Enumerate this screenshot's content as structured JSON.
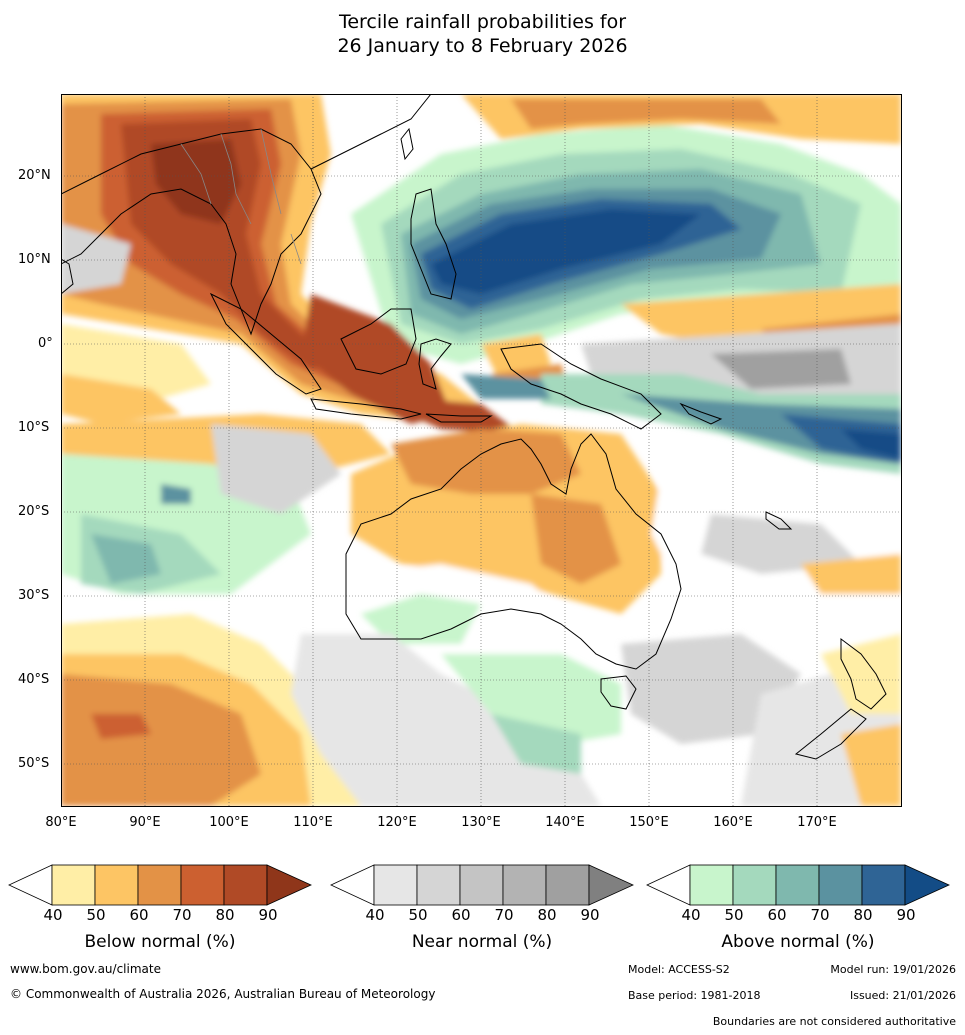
{
  "title": {
    "line1": "Tercile rainfall probabilities for",
    "line2": "26 January to 8 February 2026"
  },
  "axes": {
    "lat_labels": [
      "20°N",
      "10°N",
      "0°",
      "10°S",
      "20°S",
      "30°S",
      "40°S",
      "50°S"
    ],
    "lon_labels": [
      "80°E",
      "90°E",
      "100°E",
      "110°E",
      "120°E",
      "130°E",
      "140°E",
      "150°E",
      "160°E",
      "170°E"
    ]
  },
  "legends": [
    {
      "title": "Below normal (%)",
      "ticks": [
        "40",
        "50",
        "60",
        "70",
        "80",
        "90"
      ],
      "colors": [
        "#ffeea6",
        "#fdc564",
        "#e39246",
        "#cc6030",
        "#b04a26",
        "#8f361a"
      ]
    },
    {
      "title": "Near normal (%)",
      "ticks": [
        "40",
        "50",
        "60",
        "70",
        "80",
        "90"
      ],
      "colors": [
        "#e6e6e6",
        "#d5d5d5",
        "#c4c4c4",
        "#b3b3b3",
        "#a0a0a0",
        "#808080"
      ]
    },
    {
      "title": "Above normal (%)",
      "ticks": [
        "40",
        "50",
        "60",
        "70",
        "80",
        "90"
      ],
      "colors": [
        "#c8f5cc",
        "#a4d9bd",
        "#7fb8ae",
        "#5b92a0",
        "#2f6495",
        "#134c86"
      ]
    }
  ],
  "footer": {
    "website": "www.bom.gov.au/climate",
    "copyright": "© Commonwealth of Australia 2026, Australian Bureau of Meteorology",
    "model": "Model: ACCESS-S2",
    "model_run": "Model run: 19/01/2026",
    "base_period": "Base period: 1981-2018",
    "issued": "Issued: 21/01/2026",
    "disclaimer": "Boundaries are not considered authoritative"
  }
}
